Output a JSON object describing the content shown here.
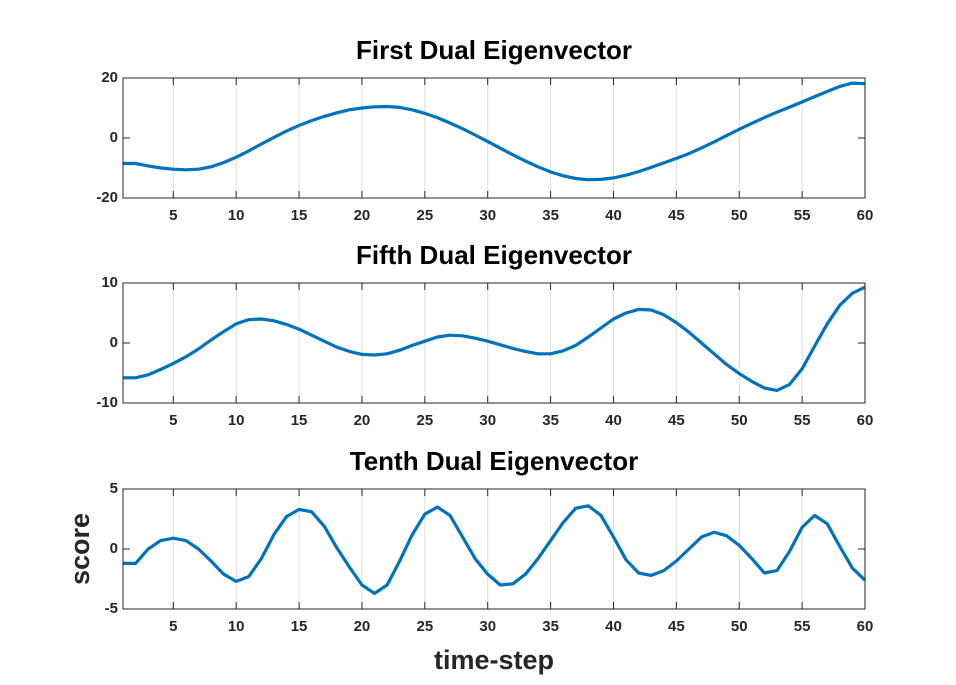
{
  "chart_data": [
    {
      "type": "line",
      "title": "First Dual Eigenvector",
      "x": [
        1,
        2,
        3,
        4,
        5,
        6,
        7,
        8,
        9,
        10,
        11,
        12,
        13,
        14,
        15,
        16,
        17,
        18,
        19,
        20,
        21,
        22,
        23,
        24,
        25,
        26,
        27,
        28,
        29,
        30,
        31,
        32,
        33,
        34,
        35,
        36,
        37,
        38,
        39,
        40,
        41,
        42,
        43,
        44,
        45,
        46,
        47,
        48,
        49,
        50,
        51,
        52,
        53,
        54,
        55,
        56,
        57,
        58,
        59,
        60
      ],
      "series": [
        {
          "color": "#0072bd",
          "values": [
            -8.5,
            -8.5,
            -9.3,
            -10,
            -10.4,
            -10.6,
            -10.4,
            -9.6,
            -8.2,
            -6.4,
            -4.3,
            -2,
            0.2,
            2.3,
            4.2,
            5.8,
            7.2,
            8.4,
            9.4,
            10,
            10.4,
            10.5,
            10.2,
            9.4,
            8.2,
            6.8,
            5,
            3.1,
            1,
            -1.2,
            -3.4,
            -5.6,
            -7.7,
            -9.6,
            -11.3,
            -12.6,
            -13.5,
            -13.9,
            -13.8,
            -13.3,
            -12.4,
            -11.2,
            -9.8,
            -8.3,
            -6.8,
            -5.2,
            -3.3,
            -1.3,
            0.8,
            2.9,
            4.9,
            6.8,
            8.6,
            10.3,
            12,
            13.8,
            15.5,
            17.2,
            18.3,
            18.1
          ]
        }
      ],
      "xlim": [
        1,
        60
      ],
      "xticks": [
        5,
        10,
        15,
        20,
        25,
        30,
        35,
        40,
        45,
        50,
        55,
        60
      ],
      "ylim": [
        -20,
        20
      ],
      "yticks": [
        20,
        0,
        -20
      ],
      "xgrid": true
    },
    {
      "type": "line",
      "title": "Fifth Dual Eigenvector",
      "x": [
        1,
        2,
        3,
        4,
        5,
        6,
        7,
        8,
        9,
        10,
        11,
        12,
        13,
        14,
        15,
        16,
        17,
        18,
        19,
        20,
        21,
        22,
        23,
        24,
        25,
        26,
        27,
        28,
        29,
        30,
        31,
        32,
        33,
        34,
        35,
        36,
        37,
        38,
        39,
        40,
        41,
        42,
        43,
        44,
        45,
        46,
        47,
        48,
        49,
        50,
        51,
        52,
        53,
        54,
        55,
        56,
        57,
        58,
        59,
        60
      ],
      "series": [
        {
          "color": "#0072bd",
          "values": [
            -5.8,
            -5.8,
            -5.3,
            -4.4,
            -3.4,
            -2.3,
            -1,
            0.5,
            1.9,
            3.2,
            3.9,
            4,
            3.7,
            3.1,
            2.3,
            1.3,
            0.3,
            -0.7,
            -1.4,
            -1.9,
            -2,
            -1.8,
            -1.2,
            -0.4,
            0.3,
            1,
            1.3,
            1.2,
            0.8,
            0.3,
            -0.3,
            -0.9,
            -1.4,
            -1.8,
            -1.8,
            -1.3,
            -0.4,
            1,
            2.5,
            4,
            5,
            5.6,
            5.5,
            4.7,
            3.4,
            1.8,
            0,
            -1.8,
            -3.6,
            -5.1,
            -6.4,
            -7.5,
            -7.9,
            -6.9,
            -4.3,
            -0.5,
            3.2,
            6.3,
            8.3,
            9.3
          ]
        }
      ],
      "xlim": [
        1,
        60
      ],
      "xticks": [
        5,
        10,
        15,
        20,
        25,
        30,
        35,
        40,
        45,
        50,
        55,
        60
      ],
      "ylim": [
        -10,
        10
      ],
      "yticks": [
        10,
        0,
        -10
      ],
      "xgrid": true
    },
    {
      "type": "line",
      "title": "Tenth Dual Eigenvector",
      "xlabel": "time-step",
      "ylabel": "score",
      "x": [
        1,
        2,
        3,
        4,
        5,
        6,
        7,
        8,
        9,
        10,
        11,
        12,
        13,
        14,
        15,
        16,
        17,
        18,
        19,
        20,
        21,
        22,
        23,
        24,
        25,
        26,
        27,
        28,
        29,
        30,
        31,
        32,
        33,
        34,
        35,
        36,
        37,
        38,
        39,
        40,
        41,
        42,
        43,
        44,
        45,
        46,
        47,
        48,
        49,
        50,
        51,
        52,
        53,
        54,
        55,
        56,
        57,
        58,
        59,
        60
      ],
      "series": [
        {
          "color": "#0072bd",
          "values": [
            -1.2,
            -1.2,
            0,
            0.7,
            0.9,
            0.7,
            0,
            -1,
            -2.1,
            -2.7,
            -2.3,
            -0.8,
            1.2,
            2.7,
            3.3,
            3.1,
            1.9,
            0.1,
            -1.5,
            -3,
            -3.7,
            -3,
            -1,
            1.2,
            2.9,
            3.5,
            2.8,
            1,
            -0.8,
            -2.1,
            -3,
            -2.9,
            -2.1,
            -0.8,
            0.7,
            2.2,
            3.4,
            3.6,
            2.8,
            1,
            -0.9,
            -2,
            -2.2,
            -1.8,
            -1,
            0,
            1,
            1.4,
            1.1,
            0.3,
            -0.8,
            -2,
            -1.8,
            -0.2,
            1.8,
            2.8,
            2.1,
            0.2,
            -1.6,
            -2.6
          ]
        }
      ],
      "xlim": [
        1,
        60
      ],
      "xticks": [
        5,
        10,
        15,
        20,
        25,
        30,
        35,
        40,
        45,
        50,
        55,
        60
      ],
      "ylim": [
        -5,
        5
      ],
      "yticks": [
        5,
        0,
        -5
      ],
      "xgrid": true
    }
  ]
}
